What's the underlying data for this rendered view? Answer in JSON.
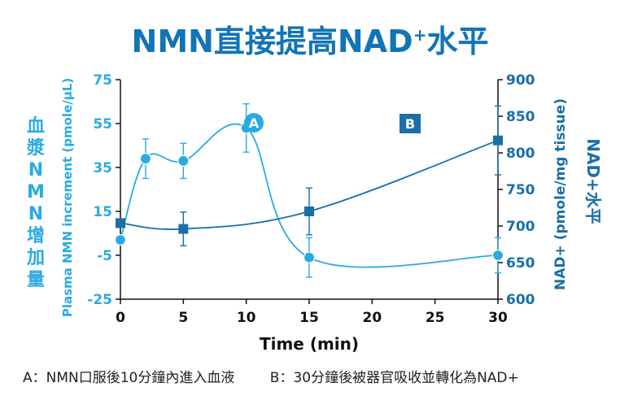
{
  "title": "NMN直接提高NAD+水平",
  "captions": [
    "A：NMN口服後10分鐘內進入血液",
    "B：30分鐘後被器官吸收並轉化為NAD+"
  ],
  "chart_data": {
    "type": "line",
    "title": "NMN直接提高NAD+水平",
    "xlabel": "Time (min)",
    "x_ticks": [
      0,
      5,
      10,
      15,
      20,
      25,
      30
    ],
    "xlim": [
      0,
      30
    ],
    "left_axis": {
      "label_cjk": "血漿NMN增加量",
      "label_en": "Plasma NMN increment (pmole/μL)",
      "ylim": [
        -25,
        75
      ],
      "ticks": [
        -25,
        -5,
        15,
        35,
        55,
        75
      ],
      "color": "#29abe2"
    },
    "right_axis": {
      "label_cjk": "NAD+水平",
      "label_en": "NAD+ (pmole/mg tissue)",
      "ylim": [
        600,
        900
      ],
      "ticks": [
        600,
        650,
        700,
        750,
        800,
        850,
        900
      ],
      "color": "#1a6fa8"
    },
    "series": [
      {
        "name": "A",
        "axis": "left",
        "marker": "circle",
        "color": "#29abe2",
        "x": [
          0,
          2,
          5,
          10,
          15,
          30
        ],
        "y": [
          2,
          39,
          38,
          53,
          -6,
          -5
        ],
        "err": [
          0,
          9,
          8,
          11,
          9,
          8
        ],
        "label": "A"
      },
      {
        "name": "B",
        "axis": "right",
        "marker": "square",
        "color": "#1a6fa8",
        "x": [
          0,
          5,
          15,
          30
        ],
        "y": [
          704,
          696,
          720,
          817
        ],
        "err": [
          0,
          23,
          32,
          47
        ],
        "label": "B"
      }
    ],
    "grid": false
  }
}
